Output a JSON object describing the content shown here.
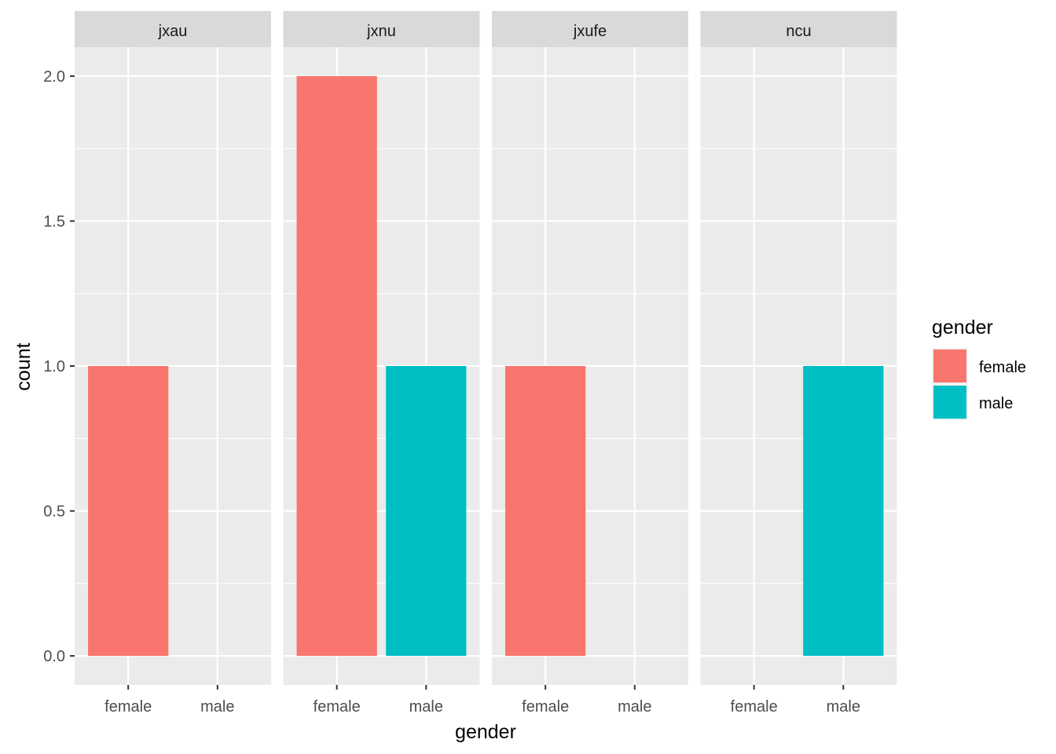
{
  "chart_data": {
    "type": "bar",
    "facets": [
      "jxau",
      "jxnu",
      "jxufe",
      "ncu"
    ],
    "categories": [
      "female",
      "male"
    ],
    "values": {
      "jxau": [
        1,
        0
      ],
      "jxnu": [
        2,
        1
      ],
      "jxufe": [
        1,
        0
      ],
      "ncu": [
        0,
        1
      ]
    },
    "xlabel": "gender",
    "ylabel": "count",
    "ylim": [
      -0.1,
      2.1
    ],
    "yticks": [
      0.0,
      0.5,
      1.0,
      1.5,
      2.0
    ],
    "ytick_labels": [
      "0.0",
      "0.5",
      "1.0",
      "1.5",
      "2.0"
    ],
    "grid": true,
    "legend": {
      "title": "gender",
      "position": "right",
      "entries": [
        {
          "label": "female",
          "color": "#F8766D"
        },
        {
          "label": "male",
          "color": "#00BFC4"
        }
      ]
    },
    "colors": {
      "female": "#F8766D",
      "male": "#00BFC4",
      "panel_bg": "#EBEBEB",
      "strip_bg": "#D9D9D9",
      "grid": "#FFFFFF"
    }
  }
}
